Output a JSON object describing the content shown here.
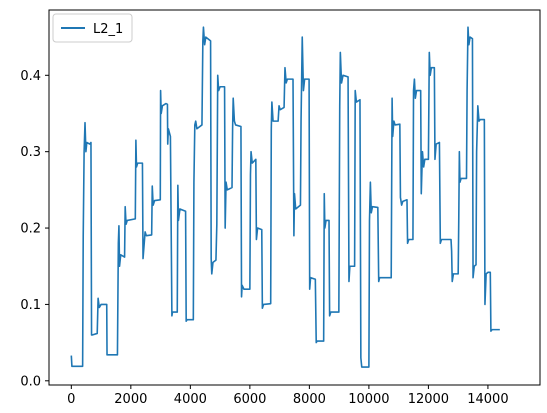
{
  "chart_data": {
    "type": "line",
    "title": "",
    "xlabel": "",
    "ylabel": "",
    "xlim": [
      -750,
      15750
    ],
    "ylim": [
      -0.0055,
      0.4855
    ],
    "xticks": [
      0,
      2000,
      4000,
      6000,
      8000,
      10000,
      12000,
      14000
    ],
    "yticks": [
      0.0,
      0.1,
      0.2,
      0.3,
      0.4
    ],
    "grid": false,
    "legend_position": "upper left",
    "series": [
      {
        "name": "L2_1",
        "color": "#1f77b4",
        "points": [
          [
            0,
            0.033
          ],
          [
            20,
            0.019
          ],
          [
            380,
            0.019
          ],
          [
            400,
            0.19
          ],
          [
            430,
            0.3
          ],
          [
            460,
            0.338
          ],
          [
            490,
            0.3
          ],
          [
            520,
            0.312
          ],
          [
            620,
            0.31
          ],
          [
            660,
            0.312
          ],
          [
            680,
            0.06
          ],
          [
            700,
            0.06
          ],
          [
            870,
            0.062
          ],
          [
            900,
            0.108
          ],
          [
            940,
            0.096
          ],
          [
            1000,
            0.1
          ],
          [
            1190,
            0.1
          ],
          [
            1200,
            0.034
          ],
          [
            1550,
            0.034
          ],
          [
            1580,
            0.18
          ],
          [
            1600,
            0.203
          ],
          [
            1620,
            0.15
          ],
          [
            1660,
            0.165
          ],
          [
            1790,
            0.162
          ],
          [
            1810,
            0.228
          ],
          [
            1840,
            0.205
          ],
          [
            1880,
            0.21
          ],
          [
            2150,
            0.212
          ],
          [
            2170,
            0.315
          ],
          [
            2190,
            0.28
          ],
          [
            2230,
            0.285
          ],
          [
            2390,
            0.285
          ],
          [
            2410,
            0.16
          ],
          [
            2430,
            0.17
          ],
          [
            2480,
            0.195
          ],
          [
            2520,
            0.19
          ],
          [
            2700,
            0.191
          ],
          [
            2720,
            0.255
          ],
          [
            2750,
            0.23
          ],
          [
            2800,
            0.236
          ],
          [
            2990,
            0.237
          ],
          [
            3000,
            0.38
          ],
          [
            3020,
            0.35
          ],
          [
            3060,
            0.36
          ],
          [
            3180,
            0.363
          ],
          [
            3230,
            0.362
          ],
          [
            3240,
            0.31
          ],
          [
            3260,
            0.33
          ],
          [
            3330,
            0.32
          ],
          [
            3380,
            0.085
          ],
          [
            3400,
            0.09
          ],
          [
            3560,
            0.09
          ],
          [
            3580,
            0.256
          ],
          [
            3600,
            0.21
          ],
          [
            3650,
            0.225
          ],
          [
            3840,
            0.222
          ],
          [
            3860,
            0.078
          ],
          [
            3890,
            0.08
          ],
          [
            4100,
            0.08
          ],
          [
            4120,
            0.26
          ],
          [
            4150,
            0.335
          ],
          [
            4180,
            0.34
          ],
          [
            4220,
            0.33
          ],
          [
            4390,
            0.335
          ],
          [
            4420,
            0.445
          ],
          [
            4440,
            0.463
          ],
          [
            4480,
            0.44
          ],
          [
            4520,
            0.45
          ],
          [
            4680,
            0.445
          ],
          [
            4700,
            0.16
          ],
          [
            4720,
            0.14
          ],
          [
            4760,
            0.155
          ],
          [
            4860,
            0.158
          ],
          [
            4890,
            0.205
          ],
          [
            4920,
            0.4
          ],
          [
            4950,
            0.38
          ],
          [
            5000,
            0.385
          ],
          [
            5150,
            0.385
          ],
          [
            5170,
            0.2
          ],
          [
            5200,
            0.26
          ],
          [
            5240,
            0.25
          ],
          [
            5400,
            0.253
          ],
          [
            5420,
            0.33
          ],
          [
            5440,
            0.37
          ],
          [
            5480,
            0.34
          ],
          [
            5520,
            0.335
          ],
          [
            5700,
            0.333
          ],
          [
            5720,
            0.11
          ],
          [
            5740,
            0.125
          ],
          [
            5800,
            0.12
          ],
          [
            6000,
            0.12
          ],
          [
            6020,
            0.27
          ],
          [
            6040,
            0.3
          ],
          [
            6080,
            0.285
          ],
          [
            6200,
            0.29
          ],
          [
            6220,
            0.185
          ],
          [
            6260,
            0.2
          ],
          [
            6400,
            0.198
          ],
          [
            6420,
            0.095
          ],
          [
            6460,
            0.1
          ],
          [
            6700,
            0.101
          ],
          [
            6720,
            0.33
          ],
          [
            6740,
            0.365
          ],
          [
            6780,
            0.34
          ],
          [
            6950,
            0.34
          ],
          [
            6980,
            0.36
          ],
          [
            7020,
            0.355
          ],
          [
            7150,
            0.358
          ],
          [
            7180,
            0.41
          ],
          [
            7220,
            0.39
          ],
          [
            7260,
            0.395
          ],
          [
            7450,
            0.395
          ],
          [
            7480,
            0.19
          ],
          [
            7500,
            0.245
          ],
          [
            7540,
            0.225
          ],
          [
            7700,
            0.23
          ],
          [
            7720,
            0.34
          ],
          [
            7760,
            0.45
          ],
          [
            7800,
            0.38
          ],
          [
            7840,
            0.395
          ],
          [
            7990,
            0.395
          ],
          [
            8010,
            0.12
          ],
          [
            8040,
            0.135
          ],
          [
            8200,
            0.133
          ],
          [
            8230,
            0.05
          ],
          [
            8260,
            0.052
          ],
          [
            8480,
            0.052
          ],
          [
            8500,
            0.245
          ],
          [
            8520,
            0.2
          ],
          [
            8560,
            0.21
          ],
          [
            8660,
            0.21
          ],
          [
            8680,
            0.085
          ],
          [
            8720,
            0.09
          ],
          [
            8990,
            0.09
          ],
          [
            9020,
            0.36
          ],
          [
            9040,
            0.43
          ],
          [
            9080,
            0.39
          ],
          [
            9130,
            0.4
          ],
          [
            9300,
            0.398
          ],
          [
            9330,
            0.13
          ],
          [
            9360,
            0.15
          ],
          [
            9520,
            0.15
          ],
          [
            9540,
            0.38
          ],
          [
            9580,
            0.365
          ],
          [
            9700,
            0.368
          ],
          [
            9730,
            0.03
          ],
          [
            9760,
            0.018
          ],
          [
            10000,
            0.018
          ],
          [
            10020,
            0.21
          ],
          [
            10050,
            0.26
          ],
          [
            10080,
            0.22
          ],
          [
            10120,
            0.228
          ],
          [
            10300,
            0.227
          ],
          [
            10330,
            0.13
          ],
          [
            10360,
            0.135
          ],
          [
            10750,
            0.135
          ],
          [
            10780,
            0.37
          ],
          [
            10800,
            0.32
          ],
          [
            10840,
            0.34
          ],
          [
            10880,
            0.335
          ],
          [
            11040,
            0.336
          ],
          [
            11060,
            0.24
          ],
          [
            11100,
            0.23
          ],
          [
            11140,
            0.235
          ],
          [
            11280,
            0.237
          ],
          [
            11300,
            0.18
          ],
          [
            11340,
            0.185
          ],
          [
            11480,
            0.185
          ],
          [
            11500,
            0.38
          ],
          [
            11530,
            0.395
          ],
          [
            11560,
            0.37
          ],
          [
            11600,
            0.38
          ],
          [
            11740,
            0.38
          ],
          [
            11760,
            0.245
          ],
          [
            11800,
            0.3
          ],
          [
            11840,
            0.28
          ],
          [
            11880,
            0.29
          ],
          [
            12000,
            0.29
          ],
          [
            12030,
            0.43
          ],
          [
            12060,
            0.4
          ],
          [
            12100,
            0.41
          ],
          [
            12200,
            0.41
          ],
          [
            12220,
            0.29
          ],
          [
            12260,
            0.31
          ],
          [
            12370,
            0.312
          ],
          [
            12400,
            0.18
          ],
          [
            12440,
            0.185
          ],
          [
            12760,
            0.185
          ],
          [
            12780,
            0.17
          ],
          [
            12800,
            0.13
          ],
          [
            12840,
            0.14
          ],
          [
            13000,
            0.14
          ],
          [
            13020,
            0.21
          ],
          [
            13040,
            0.3
          ],
          [
            13060,
            0.26
          ],
          [
            13100,
            0.265
          ],
          [
            13280,
            0.265
          ],
          [
            13300,
            0.38
          ],
          [
            13330,
            0.463
          ],
          [
            13360,
            0.44
          ],
          [
            13400,
            0.45
          ],
          [
            13480,
            0.448
          ],
          [
            13500,
            0.135
          ],
          [
            13540,
            0.15
          ],
          [
            13600,
            0.152
          ],
          [
            13620,
            0.3
          ],
          [
            13660,
            0.36
          ],
          [
            13700,
            0.34
          ],
          [
            13740,
            0.342
          ],
          [
            13880,
            0.342
          ],
          [
            13900,
            0.1
          ],
          [
            13940,
            0.14
          ],
          [
            14000,
            0.142
          ],
          [
            14080,
            0.142
          ],
          [
            14100,
            0.065
          ],
          [
            14140,
            0.067
          ],
          [
            14400,
            0.067
          ]
        ]
      }
    ]
  }
}
